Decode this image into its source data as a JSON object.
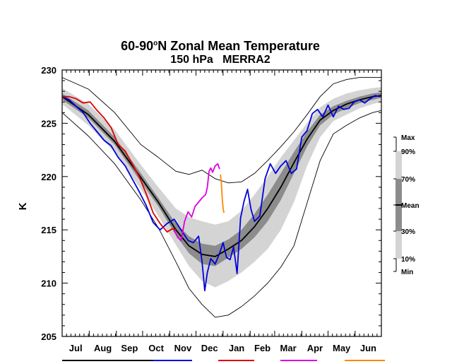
{
  "chart_data": {
    "type": "line",
    "title": "60-90°N Zonal Mean Temperature",
    "title_line1_main": "60-90",
    "title_line1_sup": "o",
    "title_line1_rest": "N Zonal Mean Temperature",
    "subtitle": "150 hPa   MERRA2",
    "ylabel": "K",
    "xlabel": "",
    "ylim": [
      205,
      230
    ],
    "xlim": [
      0,
      365
    ],
    "yticks": [
      205,
      210,
      215,
      220,
      225,
      230
    ],
    "ytick_labels": [
      "205",
      "210",
      "215",
      "220",
      "225",
      "230"
    ],
    "months": [
      "Jul",
      "Aug",
      "Sep",
      "Oct",
      "Nov",
      "Dec",
      "Jan",
      "Feb",
      "Mar",
      "Apr",
      "May",
      "Jun"
    ],
    "grid": false,
    "legend_placement": "right",
    "climatology": {
      "legend_labels": [
        "Max",
        "90%",
        "70%",
        "Mean",
        "30%",
        "10%",
        "Min"
      ],
      "x": [
        0,
        30,
        60,
        90,
        110,
        130,
        145,
        160,
        175,
        190,
        205,
        220,
        235,
        250,
        265,
        280,
        295,
        310,
        325,
        340,
        355,
        365
      ],
      "min": [
        226.0,
        223.8,
        221.2,
        217.8,
        215.2,
        212.0,
        209.5,
        208.0,
        206.8,
        207.0,
        207.8,
        208.8,
        210.0,
        211.5,
        213.5,
        217.5,
        221.5,
        224.0,
        224.8,
        225.5,
        226.0,
        226.2
      ],
      "p10": [
        226.8,
        224.8,
        222.3,
        218.8,
        216.3,
        213.6,
        211.6,
        210.2,
        209.6,
        210.2,
        211.0,
        212.0,
        213.2,
        215.0,
        217.6,
        221.0,
        223.7,
        225.2,
        225.8,
        226.4,
        226.8,
        227.0
      ],
      "p30": [
        227.2,
        225.5,
        223.0,
        219.5,
        217.2,
        214.5,
        212.8,
        211.8,
        211.6,
        212.4,
        213.2,
        214.3,
        215.8,
        217.8,
        220.3,
        222.8,
        224.8,
        225.8,
        226.4,
        226.9,
        227.2,
        227.4
      ],
      "mean": [
        227.5,
        225.8,
        223.3,
        219.9,
        217.6,
        215.0,
        213.5,
        212.7,
        212.5,
        213.2,
        214.0,
        215.3,
        217.0,
        219.0,
        221.3,
        223.5,
        225.3,
        226.2,
        226.8,
        227.2,
        227.5,
        227.6
      ],
      "p70": [
        227.8,
        226.2,
        223.7,
        220.3,
        218.0,
        215.6,
        214.4,
        213.7,
        213.5,
        214.1,
        215.0,
        216.5,
        218.3,
        220.3,
        222.3,
        224.2,
        225.8,
        226.6,
        227.1,
        227.5,
        227.8,
        227.9
      ],
      "p90": [
        228.3,
        226.8,
        224.4,
        221.1,
        219.0,
        217.0,
        216.2,
        215.8,
        215.5,
        215.8,
        216.8,
        218.3,
        220.0,
        221.8,
        223.4,
        225.0,
        226.5,
        227.3,
        227.8,
        228.1,
        228.3,
        228.4
      ],
      "max": [
        229.3,
        228.2,
        226.0,
        223.0,
        221.8,
        220.5,
        220.2,
        220.6,
        219.8,
        219.4,
        219.5,
        220.3,
        221.5,
        222.8,
        224.2,
        225.8,
        227.5,
        228.7,
        229.1,
        229.3,
        229.3,
        229.3
      ]
    },
    "series": [
      {
        "color": "#0000dd",
        "x": [
          0,
          8,
          16,
          24,
          32,
          40,
          48,
          56,
          64,
          72,
          80,
          88,
          96,
          104,
          112,
          120,
          128,
          136,
          144,
          150,
          156,
          160,
          163,
          166,
          170,
          175,
          180,
          184,
          188,
          192,
          196,
          200,
          204,
          208,
          212,
          216,
          220,
          226,
          232,
          238,
          244,
          250,
          256,
          262,
          268,
          274,
          280,
          286,
          292,
          298,
          304,
          310,
          316,
          322,
          328,
          334,
          340,
          346,
          352,
          358,
          364
        ],
        "y": [
          227.5,
          227.2,
          226.6,
          226.0,
          225.0,
          224.2,
          223.4,
          222.9,
          221.8,
          221.0,
          219.8,
          218.6,
          217.3,
          215.7,
          215.0,
          215.6,
          216.0,
          215.0,
          214.0,
          213.8,
          214.4,
          212.0,
          209.3,
          211.0,
          212.3,
          211.8,
          212.8,
          213.8,
          212.4,
          212.2,
          213.4,
          210.9,
          216.1,
          217.7,
          218.8,
          216.9,
          215.8,
          216.3,
          219.8,
          221.2,
          220.3,
          221.0,
          221.5,
          220.3,
          220.7,
          223.7,
          224.3,
          225.9,
          226.3,
          225.6,
          226.7,
          225.6,
          226.6,
          226.3,
          226.4,
          227.0,
          227.2,
          226.9,
          227.3,
          227.6,
          227.5
        ]
      },
      {
        "color": "#dd0000",
        "x": [
          0,
          8,
          16,
          24,
          32,
          40,
          48,
          56,
          64,
          72,
          80,
          88,
          96,
          104,
          112,
          120,
          126,
          130
        ],
        "y": [
          227.5,
          227.5,
          227.3,
          226.9,
          227.0,
          226.2,
          225.5,
          224.6,
          223.0,
          222.4,
          221.2,
          220.0,
          218.4,
          216.6,
          215.6,
          214.8,
          215.1,
          215.0
        ]
      },
      {
        "color": "#dd00dd",
        "x": [
          128,
          132,
          136,
          140,
          144,
          148,
          152,
          156,
          160,
          164,
          166,
          168,
          170,
          172,
          175,
          178,
          180
        ],
        "y": [
          215.0,
          214.3,
          214.0,
          215.8,
          216.7,
          216.2,
          217.2,
          217.6,
          218.0,
          218.3,
          219.0,
          220.5,
          220.8,
          220.4,
          221.0,
          221.2,
          220.7
        ]
      },
      {
        "color": "#ff8800",
        "x": [
          181,
          182,
          183,
          184,
          185
        ],
        "y": [
          220.2,
          219.4,
          218.0,
          217.0,
          216.6
        ]
      }
    ]
  },
  "legend": {
    "bar_labels": [
      "Max",
      "90%",
      "70%",
      "Mean",
      "30%",
      "10%",
      "Min"
    ]
  }
}
